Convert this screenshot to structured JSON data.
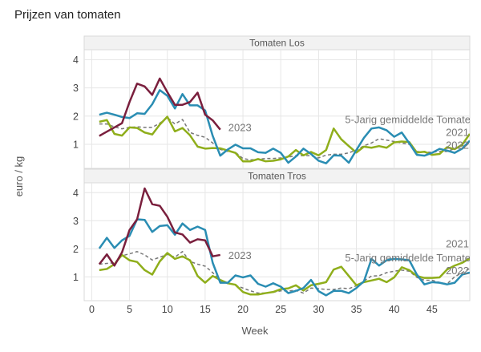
{
  "title": "Prijzen van tomaten",
  "chart_data": [
    {
      "type": "line",
      "title": "Tomaten Los",
      "xlabel": "Week",
      "ylabel": "euro / kg",
      "xlim": [
        -1,
        50
      ],
      "ylim": [
        0.15,
        4.35
      ],
      "yticks": [
        1,
        2,
        3,
        4
      ],
      "xticks": [
        0,
        5,
        10,
        15,
        20,
        25,
        30,
        35,
        40,
        45
      ],
      "grid": true,
      "series": [
        {
          "name": "2023",
          "color": "#7a1f3d",
          "dash": false,
          "x": [
            1,
            2,
            3,
            4,
            5,
            6,
            7,
            8,
            9,
            10,
            11,
            12,
            13,
            14,
            15,
            16,
            17
          ],
          "values": [
            1.3,
            1.45,
            1.6,
            1.75,
            2.5,
            3.15,
            3.05,
            2.75,
            3.33,
            2.85,
            2.4,
            2.4,
            2.5,
            2.83,
            2.05,
            1.85,
            1.52
          ]
        },
        {
          "name": "2022",
          "color": "#2a8db3",
          "dash": false,
          "x_start": 1,
          "values": [
            2.05,
            2.12,
            2.05,
            1.97,
            1.93,
            2.1,
            2.08,
            2.42,
            2.92,
            2.72,
            2.27,
            2.78,
            2.38,
            2.38,
            2.2,
            1.3,
            0.6,
            0.82,
            0.99,
            0.86,
            0.86,
            0.72,
            0.7,
            0.85,
            0.7,
            0.35,
            0.57,
            0.85,
            0.66,
            0.42,
            0.33,
            0.61,
            0.6,
            0.35,
            0.8,
            1.23,
            1.56,
            1.6,
            1.5,
            1.27,
            1.42,
            1.04,
            0.63,
            0.6,
            0.7,
            0.84,
            0.78,
            0.7,
            0.85,
            1.13
          ]
        },
        {
          "name": "2021",
          "color": "#8fae1b",
          "dash": false,
          "x_start": 1,
          "values": [
            1.8,
            1.86,
            1.37,
            1.31,
            1.6,
            1.58,
            1.42,
            1.35,
            1.7,
            1.98,
            1.46,
            1.58,
            1.32,
            0.92,
            0.85,
            0.87,
            0.86,
            0.78,
            0.7,
            0.4,
            0.4,
            0.48,
            0.4,
            0.42,
            0.47,
            0.57,
            0.8,
            0.61,
            0.73,
            0.61,
            0.8,
            1.56,
            1.18,
            0.94,
            0.71,
            0.92,
            0.88,
            0.94,
            0.88,
            1.07,
            1.1,
            1.08,
            0.71,
            0.74,
            0.63,
            0.66,
            0.9,
            0.83,
            0.99,
            1.37
          ]
        },
        {
          "name": "5-Jarig gemiddelde Tomate",
          "color": "#777777",
          "dash": true,
          "x_start": 1,
          "values": [
            1.72,
            1.72,
            1.62,
            1.55,
            1.6,
            1.62,
            1.6,
            1.6,
            1.75,
            1.95,
            1.72,
            1.88,
            1.42,
            1.32,
            1.25,
            1.05,
            0.82,
            0.75,
            0.72,
            0.5,
            0.45,
            0.47,
            0.5,
            0.5,
            0.52,
            0.55,
            0.6,
            0.6,
            0.6,
            0.52,
            0.62,
            0.65,
            0.65,
            0.7,
            0.8,
            0.95,
            1.05,
            1.2,
            1.15,
            1.1,
            1.05,
            1.0,
            0.75,
            0.72,
            0.72,
            0.75,
            0.75,
            0.85,
            0.95,
            1.05
          ]
        }
      ]
    },
    {
      "type": "line",
      "title": "Tomaten Tros",
      "xlabel": "Week",
      "ylabel": "euro / kg",
      "xlim": [
        -1,
        50
      ],
      "ylim": [
        0.15,
        4.35
      ],
      "yticks": [
        1,
        2,
        3,
        4
      ],
      "xticks": [
        0,
        5,
        10,
        15,
        20,
        25,
        30,
        35,
        40,
        45
      ],
      "grid": true,
      "series": [
        {
          "name": "2023",
          "color": "#7a1f3d",
          "dash": false,
          "x": [
            1,
            2,
            3,
            4,
            5,
            6,
            7,
            8,
            9,
            10,
            11,
            12,
            13,
            14,
            15,
            16,
            17
          ],
          "values": [
            1.45,
            1.8,
            1.4,
            1.87,
            2.67,
            3.05,
            4.15,
            3.59,
            3.53,
            3.14,
            2.58,
            2.51,
            2.22,
            2.34,
            2.3,
            1.73,
            1.78
          ]
        },
        {
          "name": "2022",
          "color": "#2a8db3",
          "dash": false,
          "x_start": 1,
          "values": [
            2.01,
            2.39,
            2.03,
            2.3,
            2.46,
            3.05,
            3.03,
            2.6,
            2.81,
            2.84,
            2.5,
            2.9,
            2.67,
            2.79,
            2.67,
            1.5,
            0.79,
            0.79,
            1.05,
            0.98,
            1.05,
            0.75,
            0.65,
            0.77,
            0.65,
            0.42,
            0.5,
            0.6,
            0.89,
            0.49,
            0.34,
            0.5,
            0.5,
            0.42,
            0.6,
            0.84,
            1.64,
            1.4,
            1.59,
            1.64,
            1.62,
            1.59,
            1.08,
            0.73,
            0.81,
            0.79,
            0.73,
            0.79,
            1.08,
            1.15
          ]
        },
        {
          "name": "2021",
          "color": "#8fae1b",
          "dash": false,
          "x_start": 1,
          "values": [
            1.24,
            1.28,
            1.45,
            1.78,
            1.59,
            1.53,
            1.24,
            1.08,
            1.55,
            1.85,
            1.64,
            1.73,
            1.59,
            1.03,
            0.79,
            1.03,
            0.89,
            0.77,
            0.72,
            0.46,
            0.37,
            0.37,
            0.42,
            0.46,
            0.56,
            0.59,
            0.7,
            0.51,
            0.7,
            0.75,
            0.81,
            1.26,
            1.36,
            1.03,
            0.7,
            0.81,
            0.87,
            0.93,
            0.81,
            0.98,
            1.34,
            1.24,
            1.03,
            0.96,
            0.96,
            0.98,
            1.26,
            1.4,
            1.5,
            1.66
          ]
        },
        {
          "name": "5-Jarig gemiddelde Tomate",
          "color": "#777777",
          "dash": true,
          "x_start": 1,
          "values": [
            1.45,
            1.48,
            1.5,
            1.75,
            1.82,
            1.9,
            1.78,
            1.6,
            1.7,
            1.8,
            1.7,
            1.9,
            1.55,
            1.45,
            1.38,
            1.15,
            0.85,
            0.78,
            0.7,
            0.6,
            0.5,
            0.42,
            0.42,
            0.45,
            0.5,
            0.5,
            0.52,
            0.42,
            0.6,
            0.58,
            0.55,
            0.55,
            0.6,
            0.58,
            0.68,
            0.85,
            1.03,
            1.04,
            1.15,
            1.2,
            1.24,
            1.2,
            0.98,
            0.88,
            0.88,
            0.8,
            0.75,
            1.0,
            1.15,
            1.3
          ]
        }
      ]
    }
  ]
}
